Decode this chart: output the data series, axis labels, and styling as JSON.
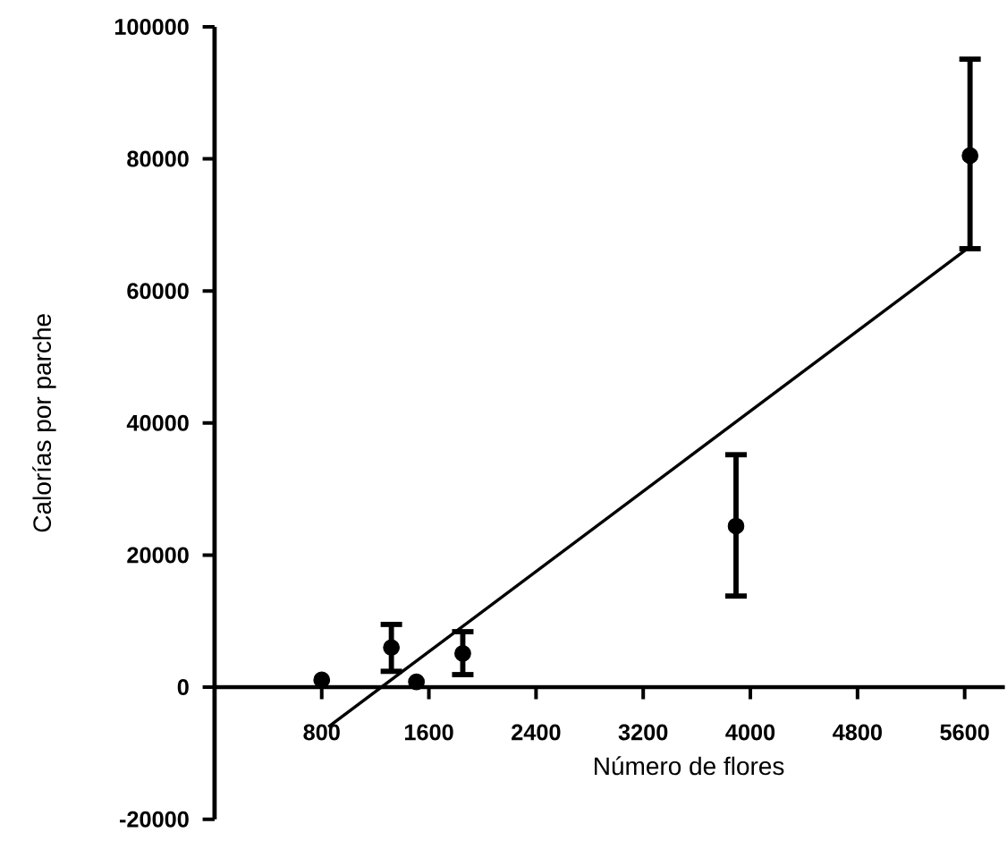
{
  "chart_data": {
    "type": "scatter",
    "xlabel": "Número de flores",
    "ylabel": "Calorías por parche",
    "xlim": [
      0,
      5900
    ],
    "ylim": [
      -20000,
      100000
    ],
    "xticks": [
      800,
      1600,
      2400,
      3200,
      4000,
      4800,
      5600
    ],
    "yticks": [
      -20000,
      0,
      20000,
      40000,
      60000,
      80000,
      100000
    ],
    "grid": false,
    "marker": "circle",
    "series": [
      {
        "color": "#000000",
        "x": [
          800,
          1320,
          1507,
          1853,
          3893,
          5640
        ],
        "values": [
          1100,
          6000,
          800,
          5100,
          24400,
          80500
        ],
        "errors": [
          null,
          [
            2400,
            9500
          ],
          null,
          [
            1900,
            8400
          ],
          [
            13800,
            35200
          ],
          [
            66400,
            95100
          ]
        ]
      },
      {
        "type": "line",
        "color": "#000000",
        "marker": "none",
        "line_style": "solid",
        "x": [
          850,
          5620
        ],
        "values": [
          -6000,
          66400
        ]
      }
    ]
  }
}
